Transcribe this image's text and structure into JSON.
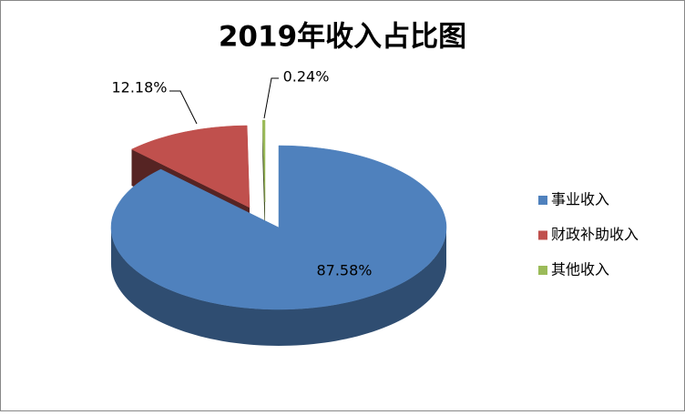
{
  "chart_data": {
    "type": "pie3d",
    "title": "2019年收入占比图",
    "categories": [
      "事业收入",
      "财政补助收入",
      "其他收入"
    ],
    "values": [
      87.58,
      12.18,
      0.24
    ],
    "value_labels": [
      "87.58%",
      "12.18%",
      "0.24%"
    ],
    "colors": [
      "#4f81bd",
      "#c0504d",
      "#9bbb59"
    ],
    "legend": "right"
  }
}
